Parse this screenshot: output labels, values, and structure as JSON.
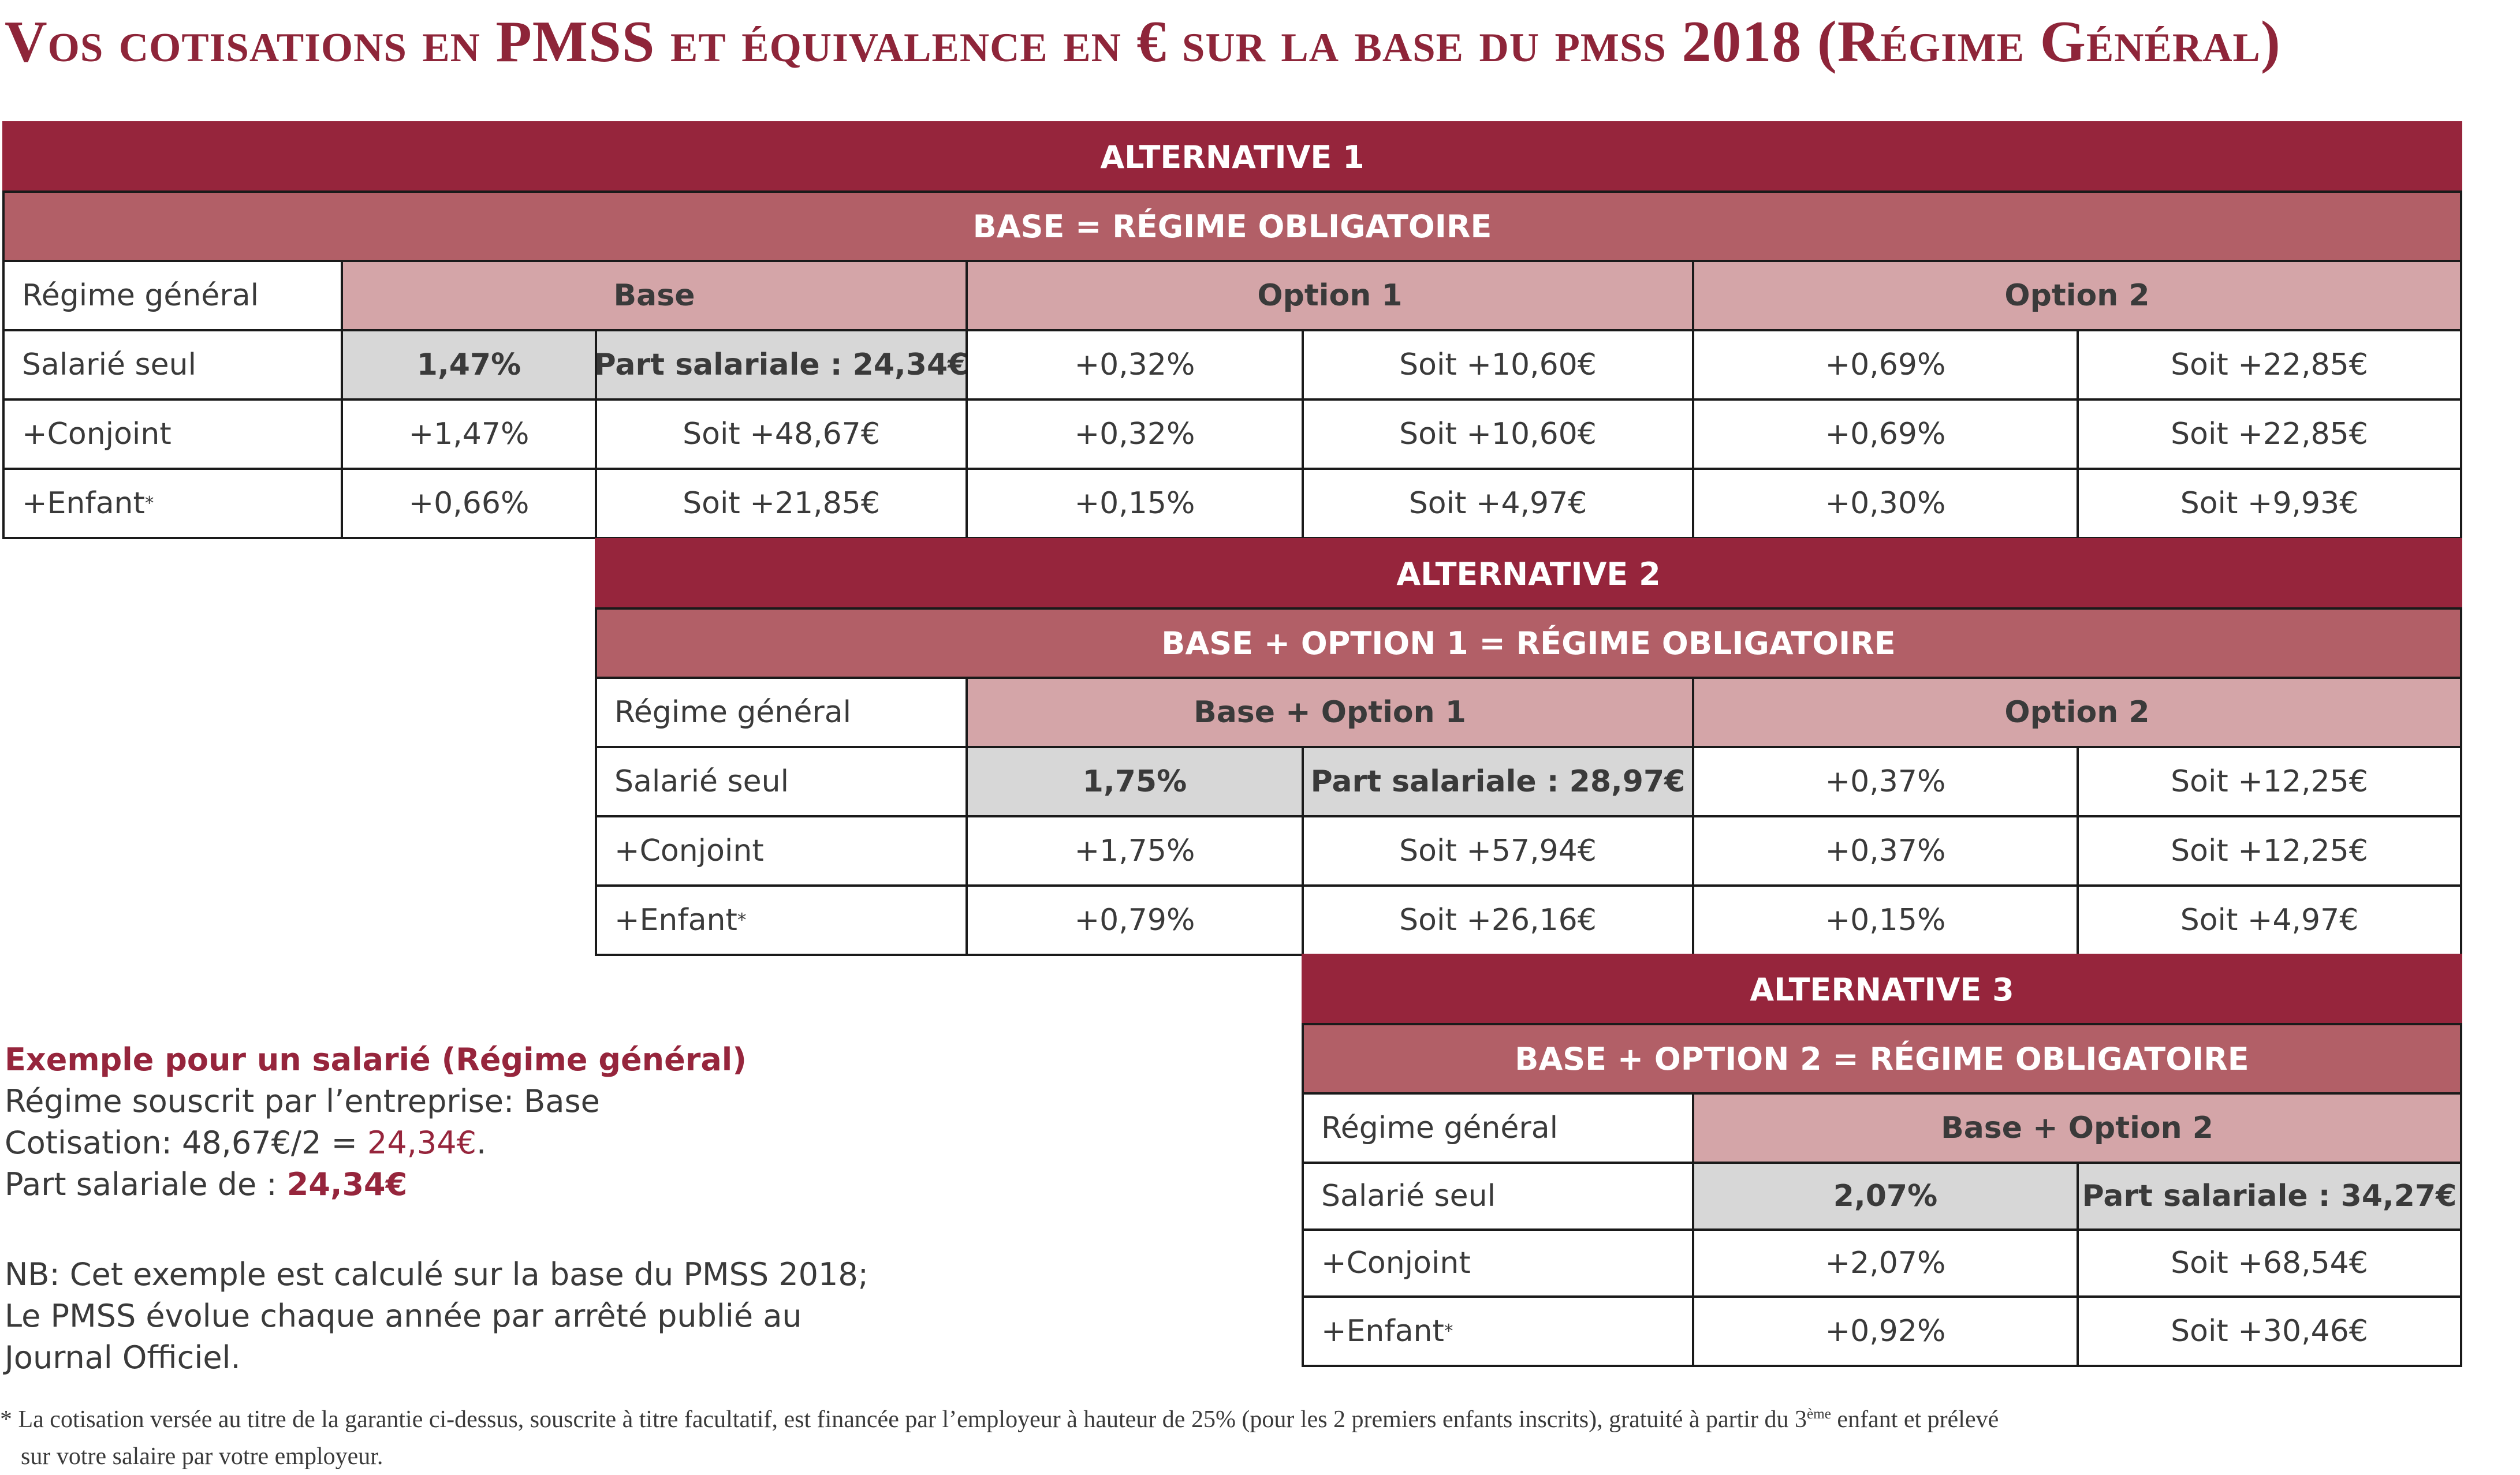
{
  "title": {
    "part1": "Vos cotisations en ",
    "part2": "PMSS",
    "part3": " et équivalence en € sur la base du pmss ",
    "part4": "2018",
    "part5": " (Régime Général)"
  },
  "alt1": {
    "title": "ALTERNATIVE 1",
    "subtitle": "BASE = RÉGIME OBLIGATOIRE",
    "header": [
      "Régime général",
      "Base",
      "Option 1",
      "Option 2"
    ],
    "rows": [
      {
        "label": "Salarié seul",
        "c1": "1,47%",
        "c2": "Part salariale : 24,34€",
        "c3": "+0,32%",
        "c4": "Soit +10,60€",
        "c5": "+0,69%",
        "c6": "Soit +22,85€"
      },
      {
        "label": "+Conjoint",
        "c1": "+1,47%",
        "c2": "Soit +48,67€",
        "c3": "+0,32%",
        "c4": "Soit +10,60€",
        "c5": "+0,69%",
        "c6": "Soit +22,85€"
      },
      {
        "label": "+Enfant",
        "sup": "*",
        "c1": "+0,66%",
        "c2": "Soit +21,85€",
        "c3": "+0,15%",
        "c4": "Soit +4,97€",
        "c5": "+0,30%",
        "c6": "Soit +9,93€"
      }
    ]
  },
  "alt2": {
    "title": "ALTERNATIVE 2",
    "subtitle": "BASE + OPTION 1 = RÉGIME OBLIGATOIRE",
    "header": [
      "Régime général",
      "Base + Option 1",
      "Option 2"
    ],
    "rows": [
      {
        "label": "Salarié seul",
        "c1": "1,75%",
        "c2": "Part salariale :  28,97€",
        "c3": "+0,37%",
        "c4": "Soit +12,25€"
      },
      {
        "label": "+Conjoint",
        "c1": "+1,75%",
        "c2": "Soit +57,94€",
        "c3": "+0,37%",
        "c4": "Soit +12,25€"
      },
      {
        "label": "+Enfant",
        "sup": "*",
        "c1": "+0,79%",
        "c2": "Soit +26,16€",
        "c3": "+0,15%",
        "c4": "Soit +4,97€"
      }
    ]
  },
  "alt3": {
    "title": "ALTERNATIVE 3",
    "subtitle": "BASE + OPTION 2 = RÉGIME OBLIGATOIRE",
    "header": [
      "Régime général",
      "Base + Option 2"
    ],
    "rows": [
      {
        "label": "Salarié seul",
        "c1": "2,07%",
        "c2": "Part salariale : 34,27€"
      },
      {
        "label": "+Conjoint",
        "c1": "+2,07%",
        "c2": "Soit +68,54€"
      },
      {
        "label": "+Enfant",
        "sup": "*",
        "c1": "+0,92%",
        "c2": "Soit +30,46€"
      }
    ]
  },
  "example": {
    "heading": "Exemple pour un salarié (Régime général)",
    "line1": "Régime souscrit par l’entreprise: Base",
    "line2_prefix": "Cotisation: 48,67€/2 = ",
    "line2_value": "24,34€",
    "line2_suffix": ".",
    "line3_prefix": "Part salariale de : ",
    "line3_value": "24,34€",
    "nb1": "NB: Cet exemple est calculé sur la base du PMSS 2018;",
    "nb2": "Le PMSS évolue chaque année par arrêté publié au",
    "nb3": "Journal Officiel."
  },
  "footnote": {
    "star": "*",
    "text1": " La cotisation versée au titre de la garantie ci-dessus, souscrite à titre facultatif, est financée par l’employeur à hauteur de 25% (pour les 2 premiers enfants inscrits), gratuité à partir du 3",
    "sup": "ème",
    "text2": " enfant et prélevé",
    "text3": "sur votre salaire par votre employeur."
  }
}
